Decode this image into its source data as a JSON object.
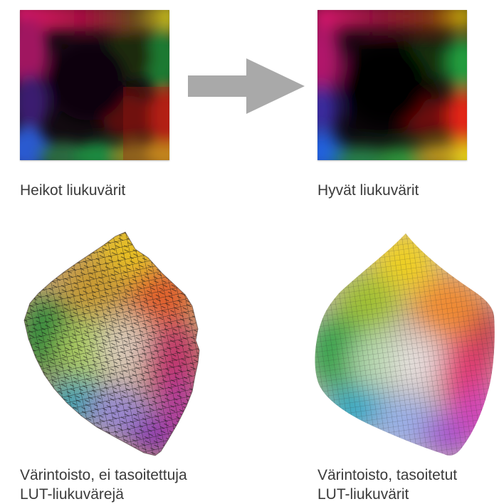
{
  "panels": {
    "top_left": {
      "caption": "Heikot liukuvärit"
    },
    "top_right": {
      "caption": "Hyvät liukuvärit"
    },
    "bottom_left": {
      "caption_line1": "Värintoisto, ei tasoitettuja",
      "caption_line2": "LUT-liukuvärejä"
    },
    "bottom_right": {
      "caption_line1": "Värintoisto, tasoitetut",
      "caption_line2": "LUT-liukuvärit"
    }
  },
  "icons": {
    "arrow": "right-arrow-icon"
  },
  "colors": {
    "arrow": "#a9a9a9",
    "caption_text": "#3b3b3b"
  }
}
